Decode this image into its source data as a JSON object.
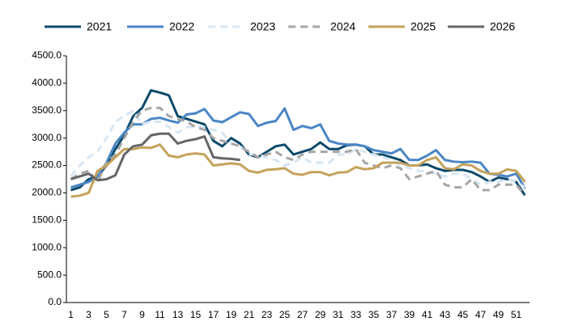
{
  "chart_data": {
    "type": "line",
    "categories": [
      1,
      null,
      3,
      null,
      5,
      null,
      7,
      null,
      9,
      null,
      11,
      null,
      13,
      null,
      15,
      null,
      17,
      null,
      19,
      null,
      21,
      null,
      23,
      null,
      25,
      null,
      27,
      null,
      29,
      null,
      31,
      null,
      33,
      null,
      35,
      null,
      37,
      null,
      39,
      null,
      41,
      null,
      43,
      null,
      45,
      null,
      47,
      null,
      49,
      null,
      51,
      null
    ],
    "ylim": [
      0,
      4500
    ],
    "yticks": [
      {
        "value": 0,
        "label": "0.0"
      },
      {
        "value": 500,
        "label": "500.0"
      },
      {
        "value": 1000,
        "label": "1000.0"
      },
      {
        "value": 1500,
        "label": "1500.0"
      },
      {
        "value": 2000,
        "label": "2000.0"
      },
      {
        "value": 2500,
        "label": "2500.0"
      },
      {
        "value": 3000,
        "label": "3000.0"
      },
      {
        "value": 3500,
        "label": "3500.0"
      },
      {
        "value": 4000,
        "label": "4000.0"
      },
      {
        "value": 4500,
        "label": "4500.0"
      }
    ],
    "grid": false,
    "legend": "top",
    "series": [
      {
        "name": "2021",
        "color": "#0d4a6b",
        "dash": false,
        "values": [
          2050,
          2100,
          2250,
          2300,
          2500,
          2800,
          3050,
          3400,
          3550,
          3870,
          3830,
          3780,
          3400,
          3350,
          3300,
          3250,
          2950,
          2850,
          3000,
          2900,
          2700,
          2650,
          2750,
          2850,
          2880,
          2700,
          2750,
          2800,
          2920,
          2800,
          2800,
          2870,
          2880,
          2850,
          2700,
          2700,
          2650,
          2600,
          2500,
          2500,
          2520,
          2450,
          2400,
          2420,
          2420,
          2380,
          2300,
          2200,
          2280,
          2250,
          2200,
          1950
        ]
      },
      {
        "name": "2022",
        "color": "#4a86c5",
        "dash": false,
        "values": [
          2100,
          2150,
          2200,
          2300,
          2550,
          2900,
          3100,
          3250,
          3250,
          3350,
          3370,
          3320,
          3280,
          3430,
          3450,
          3530,
          3320,
          3290,
          3380,
          3470,
          3440,
          3220,
          3280,
          3310,
          3540,
          3150,
          3220,
          3180,
          3250,
          2950,
          2900,
          2880,
          2880,
          2850,
          2780,
          2750,
          2720,
          2800,
          2600,
          2600,
          2680,
          2780,
          2600,
          2570,
          2560,
          2570,
          2550,
          2350,
          2330,
          2300,
          2350,
          2080
        ]
      },
      {
        "name": "2023",
        "color": "#d6e6f4",
        "dash": true,
        "values": [
          2300,
          2500,
          2650,
          2750,
          3000,
          3300,
          3400,
          3500,
          3250,
          3300,
          3300,
          3200,
          3100,
          3200,
          3200,
          3200,
          3150,
          3100,
          2900,
          2850,
          2700,
          2700,
          2650,
          2600,
          2500,
          2550,
          2650,
          2550,
          2550,
          2550,
          2700,
          2700,
          2800,
          2750,
          2700,
          2650,
          2600,
          2500,
          2450,
          2400,
          2400,
          2350,
          2300,
          2350,
          2350,
          2250,
          2150,
          2200,
          2200,
          2250,
          2200,
          2100
        ]
      },
      {
        "name": "2024",
        "color": "#a6a6a6",
        "dash": true,
        "values": [
          2250,
          2350,
          2400,
          2200,
          2550,
          2700,
          3000,
          3300,
          3500,
          3550,
          3550,
          3400,
          3350,
          3300,
          3200,
          3150,
          3000,
          2950,
          2900,
          2850,
          2750,
          2650,
          2700,
          2750,
          2650,
          2600,
          2700,
          2750,
          2750,
          2750,
          2750,
          2750,
          2800,
          2550,
          2500,
          2450,
          2500,
          2450,
          2250,
          2300,
          2350,
          2400,
          2150,
          2100,
          2100,
          2250,
          2050,
          2050,
          2150,
          2150,
          2150,
          1950
        ]
      },
      {
        "name": "2025",
        "color": "#c4a25b",
        "dash": false,
        "values": [
          1930,
          1950,
          2000,
          2400,
          2500,
          2650,
          2800,
          2800,
          2830,
          2820,
          2880,
          2680,
          2650,
          2700,
          2720,
          2700,
          2500,
          2520,
          2540,
          2520,
          2400,
          2370,
          2420,
          2430,
          2450,
          2350,
          2330,
          2380,
          2380,
          2320,
          2370,
          2380,
          2470,
          2430,
          2450,
          2550,
          2550,
          2550,
          2500,
          2500,
          2600,
          2650,
          2450,
          2430,
          2520,
          2500,
          2400,
          2350,
          2350,
          2430,
          2400,
          2200
        ]
      },
      {
        "name": "2026",
        "color": "#666666",
        "dash": false,
        "values": [
          2250,
          2300,
          2350,
          2230,
          2250,
          2320,
          2700,
          2850,
          2880,
          3050,
          3080,
          3080,
          2900,
          2950,
          2980,
          3030,
          2650,
          2630,
          2620,
          2600,
          null,
          null,
          null,
          null,
          null,
          null,
          null,
          null,
          null,
          null,
          null,
          null,
          null,
          null,
          null,
          null,
          null,
          null,
          null,
          null,
          null,
          null,
          null,
          null,
          null,
          null,
          null,
          null,
          null,
          null,
          null,
          null
        ]
      }
    ]
  }
}
